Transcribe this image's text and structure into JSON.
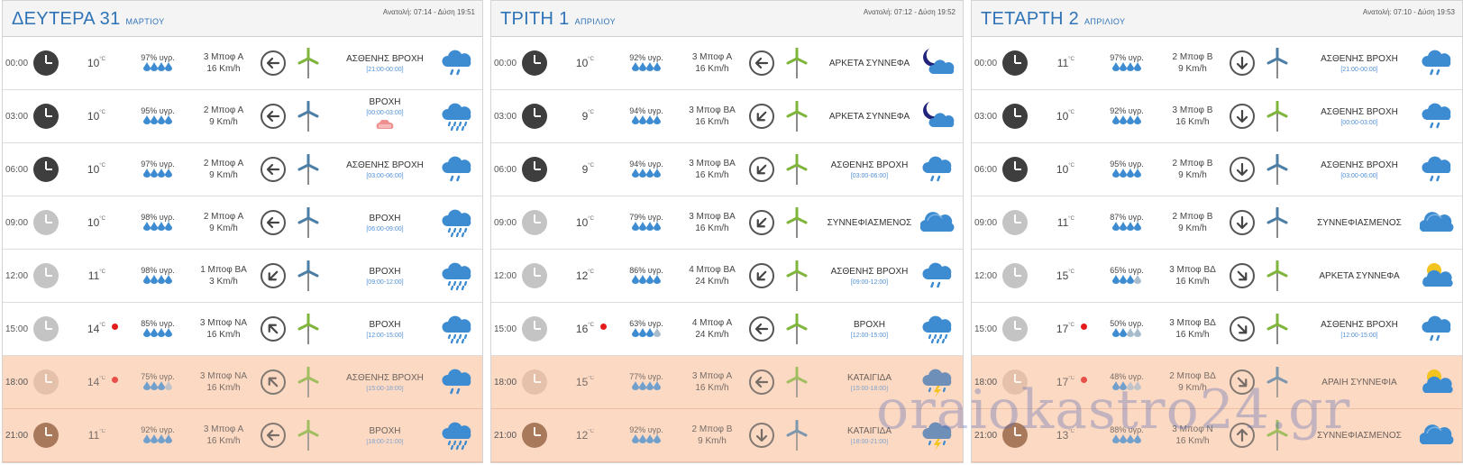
{
  "days": [
    {
      "title": "ΔΕΥΤΕΡΑ 31",
      "month": "ΜΑΡΤΙΟΥ",
      "sun": "Ανατολή: 07:14 - Δύση 19:51",
      "rows": [
        {
          "time": "00:00",
          "clock": "n",
          "temp": "10",
          "hum": "97% υγρ.",
          "drops": 4,
          "wind": "3 Μποφ Α",
          "kmh": "16 Km/h",
          "dir": "west",
          "turb": "green",
          "desc": "ΑΣΘΕΝΗΣ ΒΡΟΧΗ",
          "sub": "[21:00-00:00]",
          "icon": "light-rain-icon"
        },
        {
          "time": "03:00",
          "clock": "n",
          "temp": "10",
          "hum": "95% υγρ.",
          "drops": 4,
          "wind": "2 Μποφ Α",
          "kmh": "9 Km/h",
          "dir": "west",
          "turb": "blue",
          "desc": "ΒΡΟΧΗ",
          "sub": "[00:00-03:00]",
          "icon": "rain-icon",
          "extra": "haze-icon"
        },
        {
          "time": "06:00",
          "clock": "n",
          "temp": "10",
          "hum": "97% υγρ.",
          "drops": 4,
          "wind": "2 Μποφ Α",
          "kmh": "9 Km/h",
          "dir": "west",
          "turb": "blue",
          "desc": "ΑΣΘΕΝΗΣ ΒΡΟΧΗ",
          "sub": "[03:00-06:00]",
          "icon": "light-rain-icon"
        },
        {
          "time": "09:00",
          "clock": "d",
          "temp": "10",
          "hum": "98% υγρ.",
          "drops": 4,
          "wind": "2 Μποφ Α",
          "kmh": "9 Km/h",
          "dir": "west",
          "turb": "blue",
          "desc": "ΒΡΟΧΗ",
          "sub": "[06:00-09:00]",
          "icon": "rain-icon"
        },
        {
          "time": "12:00",
          "clock": "d",
          "temp": "11",
          "hum": "98% υγρ.",
          "drops": 4,
          "wind": "1 Μποφ ΒΑ",
          "kmh": "3 Km/h",
          "dir": "southwest",
          "turb": "blue",
          "desc": "ΒΡΟΧΗ",
          "sub": "[09:00-12:00]",
          "icon": "rain-icon"
        },
        {
          "time": "15:00",
          "clock": "d",
          "temp": "14",
          "dot": true,
          "hum": "85% υγρ.",
          "drops": 4,
          "wind": "3 Μποφ ΝΑ",
          "kmh": "16 Km/h",
          "dir": "northwest",
          "turb": "green",
          "desc": "ΒΡΟΧΗ",
          "sub": "[12:00-15:00]",
          "icon": "rain-icon"
        },
        {
          "time": "18:00",
          "clock": "e1",
          "temp": "14",
          "dot": true,
          "hum": "75% υγρ.",
          "drops": 3,
          "wind": "3 Μποφ ΝΑ",
          "kmh": "16 Km/h",
          "dir": "northwest",
          "turb": "green",
          "desc": "ΑΣΘΕΝΗΣ ΒΡΟΧΗ",
          "sub": "[15:00-18:00]",
          "icon": "light-rain-icon",
          "ev": true
        },
        {
          "time": "21:00",
          "clock": "e2",
          "temp": "11",
          "hum": "92% υγρ.",
          "drops": 4,
          "wind": "3 Μποφ Α",
          "kmh": "16 Km/h",
          "dir": "west",
          "turb": "green",
          "desc": "ΒΡΟΧΗ",
          "sub": "[18:00-21:00]",
          "icon": "rain-icon",
          "ev": true
        }
      ]
    },
    {
      "title": "ΤΡΙΤΗ 1",
      "month": "ΑΠΡΙΛΙΟΥ",
      "sun": "Ανατολή: 07:12 - Δύση 19:52",
      "rows": [
        {
          "time": "00:00",
          "clock": "n",
          "temp": "10",
          "hum": "92% υγρ.",
          "drops": 4,
          "wind": "3 Μποφ Α",
          "kmh": "16 Km/h",
          "dir": "west",
          "turb": "green",
          "desc": "ΑΡΚΕΤΑ ΣΥΝΝΕΦΑ",
          "sub": "",
          "icon": "moon-cloud-icon"
        },
        {
          "time": "03:00",
          "clock": "n",
          "temp": "9",
          "hum": "94% υγρ.",
          "drops": 4,
          "wind": "3 Μποφ ΒΑ",
          "kmh": "16 Km/h",
          "dir": "southwest",
          "turb": "green",
          "desc": "ΑΡΚΕΤΑ ΣΥΝΝΕΦΑ",
          "sub": "",
          "icon": "moon-cloud-icon"
        },
        {
          "time": "06:00",
          "clock": "n",
          "temp": "9",
          "hum": "94% υγρ.",
          "drops": 4,
          "wind": "3 Μποφ ΒΑ",
          "kmh": "16 Km/h",
          "dir": "southwest",
          "turb": "green",
          "desc": "ΑΣΘΕΝΗΣ ΒΡΟΧΗ",
          "sub": "[03:00-06:00]",
          "icon": "light-rain-icon"
        },
        {
          "time": "09:00",
          "clock": "d",
          "temp": "10",
          "hum": "79% υγρ.",
          "drops": 4,
          "wind": "3 Μποφ ΒΑ",
          "kmh": "16 Km/h",
          "dir": "southwest",
          "turb": "green",
          "desc": "ΣΥΝΝΕΦΙΑΣΜΕΝΟΣ",
          "sub": "",
          "icon": "cloud-icon"
        },
        {
          "time": "12:00",
          "clock": "d",
          "temp": "12",
          "hum": "86% υγρ.",
          "drops": 4,
          "wind": "4 Μποφ ΒΑ",
          "kmh": "24 Km/h",
          "dir": "southwest",
          "turb": "green",
          "desc": "ΑΣΘΕΝΗΣ ΒΡΟΧΗ",
          "sub": "[09:00-12:00]",
          "icon": "light-rain-icon"
        },
        {
          "time": "15:00",
          "clock": "d",
          "temp": "16",
          "dot": true,
          "hum": "63% υγρ.",
          "drops": 3,
          "wind": "4 Μποφ Α",
          "kmh": "24 Km/h",
          "dir": "west",
          "turb": "green",
          "desc": "ΒΡΟΧΗ",
          "sub": "[12:00-15:00]",
          "icon": "rain-icon"
        },
        {
          "time": "18:00",
          "clock": "e1",
          "temp": "15",
          "hum": "77% υγρ.",
          "drops": 4,
          "wind": "3 Μποφ Α",
          "kmh": "16 Km/h",
          "dir": "west",
          "turb": "green",
          "desc": "ΚΑΤΑΙΓΙΔΑ",
          "sub": "[15:00-18:00]",
          "icon": "storm-icon",
          "ev": true
        },
        {
          "time": "21:00",
          "clock": "e2",
          "temp": "12",
          "hum": "92% υγρ.",
          "drops": 4,
          "wind": "2 Μποφ Β",
          "kmh": "9 Km/h",
          "dir": "south",
          "turb": "blue",
          "desc": "ΚΑΤΑΙΓΙΔΑ",
          "sub": "[18:00-21:00]",
          "icon": "storm-icon",
          "ev": true
        }
      ]
    },
    {
      "title": "ΤΕΤΑΡΤΗ 2",
      "month": "ΑΠΡΙΛΙΟΥ",
      "sun": "Ανατολή: 07:10 - Δύση 19:53",
      "rows": [
        {
          "time": "00:00",
          "clock": "n",
          "temp": "11",
          "hum": "97% υγρ.",
          "drops": 4,
          "wind": "2 Μποφ Β",
          "kmh": "9 Km/h",
          "dir": "south",
          "turb": "blue",
          "desc": "ΑΣΘΕΝΗΣ ΒΡΟΧΗ",
          "sub": "[21:00-00:00]",
          "icon": "light-rain-icon"
        },
        {
          "time": "03:00",
          "clock": "n",
          "temp": "10",
          "hum": "92% υγρ.",
          "drops": 4,
          "wind": "3 Μποφ Β",
          "kmh": "16 Km/h",
          "dir": "south",
          "turb": "green",
          "desc": "ΑΣΘΕΝΗΣ ΒΡΟΧΗ",
          "sub": "[00:00-03:00]",
          "icon": "light-rain-icon"
        },
        {
          "time": "06:00",
          "clock": "n",
          "temp": "10",
          "hum": "95% υγρ.",
          "drops": 4,
          "wind": "2 Μποφ Β",
          "kmh": "9 Km/h",
          "dir": "south",
          "turb": "blue",
          "desc": "ΑΣΘΕΝΗΣ ΒΡΟΧΗ",
          "sub": "[03:00-06:00]",
          "icon": "light-rain-icon"
        },
        {
          "time": "09:00",
          "clock": "d",
          "temp": "11",
          "hum": "87% υγρ.",
          "drops": 4,
          "wind": "2 Μποφ Β",
          "kmh": "9 Km/h",
          "dir": "south",
          "turb": "blue",
          "desc": "ΣΥΝΝΕΦΙΑΣΜΕΝΟΣ",
          "sub": "",
          "icon": "cloud-icon"
        },
        {
          "time": "12:00",
          "clock": "d",
          "temp": "15",
          "hum": "65% υγρ.",
          "drops": 3,
          "wind": "3 Μποφ ΒΔ",
          "kmh": "16 Km/h",
          "dir": "southeast",
          "turb": "green",
          "desc": "ΑΡΚΕΤΑ ΣΥΝΝΕΦΑ",
          "sub": "",
          "icon": "sun-cloud-icon"
        },
        {
          "time": "15:00",
          "clock": "d",
          "temp": "17",
          "dot": true,
          "hum": "50% υγρ.",
          "drops": 2,
          "wind": "3 Μποφ ΒΔ",
          "kmh": "16 Km/h",
          "dir": "southeast",
          "turb": "green",
          "desc": "ΑΣΘΕΝΗΣ ΒΡΟΧΗ",
          "sub": "[12:00-15:00]",
          "icon": "light-rain-icon"
        },
        {
          "time": "18:00",
          "clock": "e1",
          "temp": "17",
          "dot": true,
          "hum": "48% υγρ.",
          "drops": 2,
          "wind": "2 Μποφ ΒΔ",
          "kmh": "9 Km/h",
          "dir": "southeast",
          "turb": "blue",
          "desc": "ΑΡΑΙΗ ΣΥΝΝΕΦΙΑ",
          "sub": "",
          "icon": "sun-cloud-icon",
          "ev": true
        },
        {
          "time": "21:00",
          "clock": "e2",
          "temp": "13",
          "hum": "88% υγρ.",
          "drops": 4,
          "wind": "3 Μποφ Ν",
          "kmh": "16 Km/h",
          "dir": "north",
          "turb": "green",
          "desc": "ΣΥΝΝΕΦΙΑΣΜΕΝΟΣ",
          "sub": "",
          "icon": "cloud-icon",
          "ev": true
        }
      ]
    }
  ],
  "unit": "°C",
  "watermark": "oraiokastro24.gr",
  "colors": {
    "accent": "#2f73b7",
    "evening": "#fcd9c3",
    "rain": "#3d8bd0"
  }
}
